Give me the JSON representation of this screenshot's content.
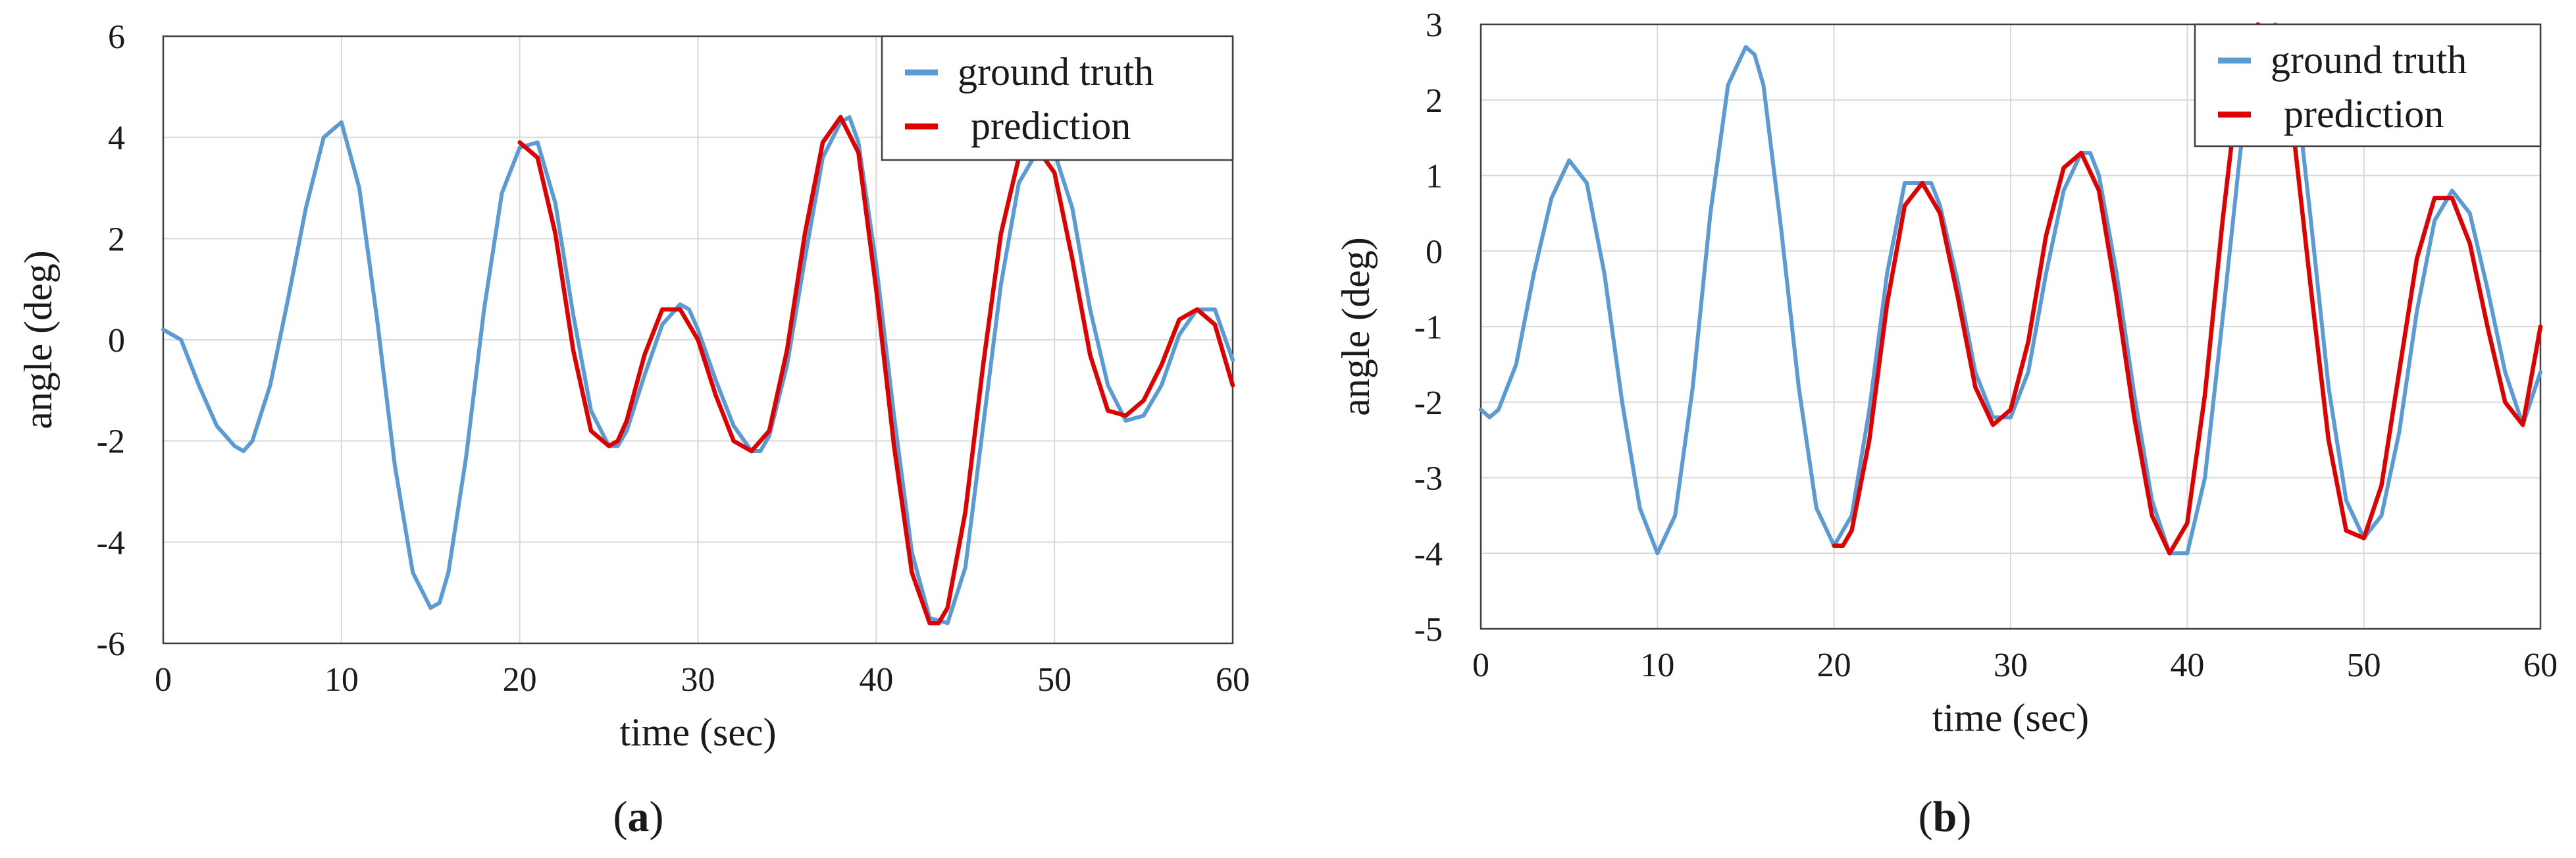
{
  "chart_data": [
    {
      "id": "a",
      "type": "line",
      "panel_label": "a",
      "xlabel": "time (sec)",
      "ylabel": "angle (deg)",
      "xlim": [
        0,
        60
      ],
      "ylim": [
        -6,
        6
      ],
      "xticks": [
        0,
        10,
        20,
        30,
        40,
        50,
        60
      ],
      "yticks": [
        -6,
        -4,
        -2,
        0,
        2,
        4,
        6
      ],
      "grid": true,
      "legend_position": "top-right",
      "series": [
        {
          "name": "ground truth",
          "color": "#5b9bd5",
          "x": [
            0,
            1,
            2,
            3,
            4,
            4.5,
            5,
            6,
            7,
            8,
            9,
            10,
            11,
            12,
            13,
            14,
            15,
            15.5,
            16,
            17,
            18,
            19,
            20,
            21,
            22,
            23,
            24,
            25,
            25.5,
            26,
            27,
            28,
            29,
            29.5,
            30,
            31,
            32,
            33,
            33.5,
            34,
            35,
            36,
            37,
            38,
            38.5,
            39,
            40,
            41,
            42,
            43,
            44,
            45,
            46,
            47,
            48,
            49,
            50,
            51,
            52,
            53,
            54,
            55,
            56,
            57,
            58,
            59,
            60
          ],
          "y": [
            0.2,
            0,
            -0.9,
            -1.7,
            -2.1,
            -2.2,
            -2.0,
            -0.9,
            0.8,
            2.6,
            4.0,
            4.3,
            3.0,
            0.4,
            -2.5,
            -4.6,
            -5.3,
            -5.2,
            -4.6,
            -2.3,
            0.6,
            2.9,
            3.8,
            3.9,
            2.7,
            0.5,
            -1.4,
            -2.1,
            -2.1,
            -1.8,
            -0.7,
            0.3,
            0.7,
            0.6,
            0.2,
            -0.8,
            -1.7,
            -2.2,
            -2.2,
            -1.9,
            -0.5,
            1.6,
            3.6,
            4.3,
            4.4,
            3.9,
            1.5,
            -1.5,
            -4.2,
            -5.5,
            -5.6,
            -4.5,
            -1.7,
            1.1,
            3.1,
            3.7,
            3.7,
            2.6,
            0.6,
            -0.9,
            -1.6,
            -1.5,
            -0.9,
            0.1,
            0.6,
            0.6,
            -0.4
          ]
        },
        {
          "name": "prediction",
          "color": "#e00000",
          "x": [
            20,
            21,
            22,
            23,
            24,
            25,
            25.5,
            26,
            27,
            28,
            29,
            30,
            31,
            32,
            33,
            34,
            35,
            36,
            37,
            38,
            39,
            40,
            41,
            42,
            43,
            43.5,
            44,
            45,
            46,
            47,
            48,
            49,
            50,
            51,
            52,
            53,
            54,
            55,
            56,
            57,
            58,
            59,
            60
          ],
          "y": [
            3.9,
            3.6,
            2.1,
            -0.2,
            -1.8,
            -2.1,
            -2.0,
            -1.6,
            -0.3,
            0.6,
            0.6,
            0.0,
            -1.1,
            -2.0,
            -2.2,
            -1.8,
            -0.2,
            2.1,
            3.9,
            4.4,
            3.7,
            1.0,
            -2.1,
            -4.6,
            -5.6,
            -5.6,
            -5.3,
            -3.4,
            -0.5,
            2.1,
            3.6,
            3.8,
            3.3,
            1.6,
            -0.3,
            -1.4,
            -1.5,
            -1.2,
            -0.5,
            0.4,
            0.6,
            0.3,
            -0.9
          ]
        }
      ]
    },
    {
      "id": "b",
      "type": "line",
      "panel_label": "b",
      "xlabel": "time (sec)",
      "ylabel": "angle (deg)",
      "xlim": [
        0,
        60
      ],
      "ylim": [
        -5,
        3
      ],
      "xticks": [
        0,
        10,
        20,
        30,
        40,
        50,
        60
      ],
      "yticks": [
        -5,
        -4,
        -3,
        -2,
        -1,
        0,
        1,
        2,
        3
      ],
      "grid": true,
      "legend_position": "top-right",
      "series": [
        {
          "name": "ground truth",
          "color": "#5b9bd5",
          "x": [
            0,
            0.5,
            1,
            2,
            3,
            4,
            5,
            6,
            7,
            8,
            9,
            10,
            11,
            12,
            13,
            14,
            15,
            15.5,
            16,
            17,
            18,
            19,
            20,
            21,
            22,
            23,
            24,
            25,
            25.5,
            26,
            27,
            28,
            29,
            30,
            31,
            32,
            33,
            34,
            34.5,
            35,
            36,
            37,
            38,
            39,
            40,
            41,
            42,
            43,
            44,
            45,
            45.5,
            46,
            47,
            48,
            49,
            50,
            51,
            52,
            53,
            54,
            55,
            56,
            57,
            58,
            59,
            60
          ],
          "y": [
            -2.1,
            -2.2,
            -2.1,
            -1.5,
            -0.3,
            0.7,
            1.2,
            0.9,
            -0.3,
            -2.0,
            -3.4,
            -4.0,
            -3.5,
            -1.8,
            0.5,
            2.2,
            2.7,
            2.6,
            2.2,
            0.3,
            -1.8,
            -3.4,
            -3.9,
            -3.5,
            -2.1,
            -0.3,
            0.9,
            0.9,
            0.9,
            0.6,
            -0.4,
            -1.6,
            -2.2,
            -2.2,
            -1.6,
            -0.3,
            0.8,
            1.3,
            1.3,
            1.0,
            -0.3,
            -1.9,
            -3.3,
            -4.0,
            -4.0,
            -3.0,
            -0.9,
            1.3,
            2.9,
            3.0,
            2.9,
            2.5,
            0.4,
            -1.8,
            -3.3,
            -3.8,
            -3.5,
            -2.4,
            -0.8,
            0.4,
            0.8,
            0.5,
            -0.5,
            -1.6,
            -2.3,
            -1.6
          ]
        },
        {
          "name": "prediction",
          "color": "#e00000",
          "x": [
            20,
            20.5,
            21,
            22,
            23,
            24,
            25,
            26,
            27,
            28,
            29,
            30,
            31,
            32,
            33,
            34,
            35,
            36,
            37,
            38,
            39,
            40,
            41,
            42,
            43,
            44,
            45,
            46,
            47,
            48,
            49,
            50,
            51,
            52,
            53,
            54,
            55,
            56,
            57,
            58,
            59,
            60
          ],
          "y": [
            -3.9,
            -3.9,
            -3.7,
            -2.5,
            -0.7,
            0.6,
            0.9,
            0.5,
            -0.6,
            -1.8,
            -2.3,
            -2.1,
            -1.2,
            0.2,
            1.1,
            1.3,
            0.8,
            -0.6,
            -2.2,
            -3.5,
            -4.0,
            -3.6,
            -1.9,
            0.4,
            2.4,
            3.0,
            2.7,
            1.6,
            -0.5,
            -2.5,
            -3.7,
            -3.8,
            -3.1,
            -1.6,
            -0.1,
            0.7,
            0.7,
            0.1,
            -1.0,
            -2.0,
            -2.3,
            -1.0
          ]
        }
      ]
    }
  ]
}
